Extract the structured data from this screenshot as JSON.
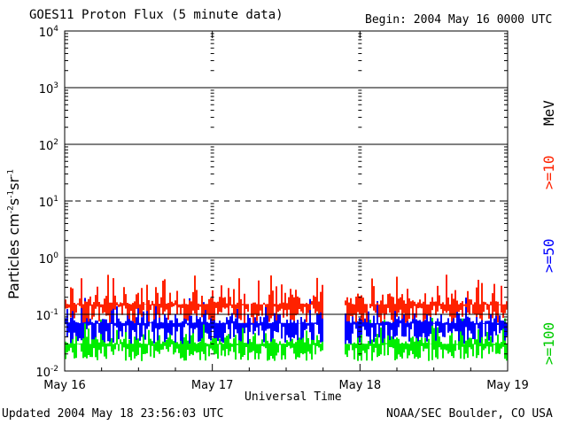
{
  "header": {
    "title": "GOES11 Proton Flux (5 minute data)",
    "begin": "Begin: 2004 May 16 0000 UTC"
  },
  "footer": {
    "updated": "Updated 2004 May 18 23:56:03 UTC",
    "credit": "NOAA/SEC Boulder, CO USA"
  },
  "chart_data": {
    "type": "line",
    "title": "GOES11 Proton Flux (5 minute data)",
    "xlabel": "Universal Time",
    "ylabel": "Particles cm-2 s-1 sr-1",
    "yscale": "log",
    "ylim": [
      0.01,
      10000
    ],
    "y_ticks": [
      {
        "value": 0.01,
        "base": "10",
        "exp": "-2"
      },
      {
        "value": 0.1,
        "base": "10",
        "exp": "-1"
      },
      {
        "value": 1,
        "base": "10",
        "exp": "0"
      },
      {
        "value": 10,
        "base": "10",
        "exp": "1"
      },
      {
        "value": 100,
        "base": "10",
        "exp": "2"
      },
      {
        "value": 1000,
        "base": "10",
        "exp": "3"
      },
      {
        "value": 10000,
        "base": "10",
        "exp": "4"
      }
    ],
    "x_ticks": [
      "May 16",
      "May 17",
      "May 18",
      "May 19"
    ],
    "xlim_days": [
      0,
      3
    ],
    "grid": true,
    "thresholds": [
      {
        "value": 1,
        "style": "solid"
      },
      {
        "value": 10,
        "style": "dashed"
      },
      {
        "value": 100,
        "style": "solid"
      },
      {
        "value": 1000,
        "style": "solid"
      },
      {
        "value": 0.1,
        "style": "solid"
      }
    ],
    "data_gap_days": [
      1.75,
      1.9
    ],
    "legend_position": "right",
    "legend_unit": "MeV",
    "series": [
      {
        "name": ">=10",
        "color": "#ff2200",
        "typical": 0.15,
        "min": 0.07,
        "max": 0.5
      },
      {
        "name": ">=50",
        "color": "#0000ff",
        "typical": 0.07,
        "min": 0.03,
        "max": 0.2
      },
      {
        "name": ">=100",
        "color": "#00ee00",
        "typical": 0.03,
        "min": 0.015,
        "max": 0.09
      }
    ]
  },
  "legend": {
    "unit": "MeV",
    "items": [
      {
        "label": ">=10",
        "color": "#ff2200"
      },
      {
        "label": ">=50",
        "color": "#0000ff"
      },
      {
        "label": ">=100",
        "color": "#00ee00"
      }
    ]
  },
  "yaxis_title": {
    "text": "Particles cm",
    "e1": "-2",
    "s2": "s",
    "e2": "-1",
    "s3": "sr",
    "e3": "-1"
  }
}
